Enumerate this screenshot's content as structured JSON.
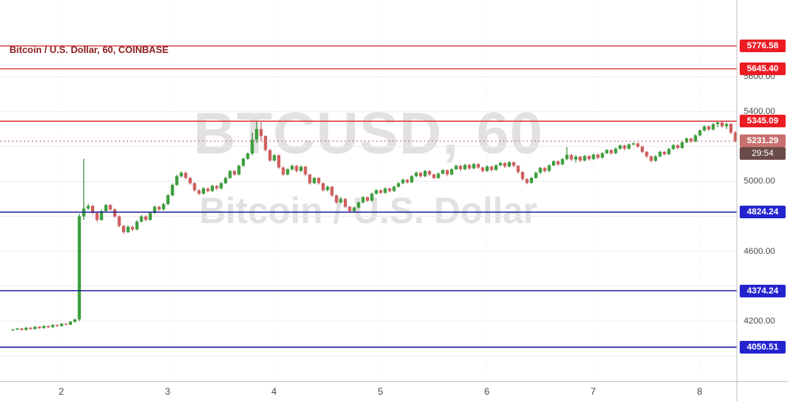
{
  "watermark": {
    "line1": "BTCUSD, 60",
    "line2": "Bitcoin / U.S. Dollar"
  },
  "colors": {
    "up": "#3c9e3c",
    "up_wick": "#1e7a1e",
    "down": "#cf5f5f",
    "down_wick": "#b54a4a",
    "resistance_line": "#d84040",
    "resistance_label_bg": "#ed1c24",
    "support_line": "#1a1a99",
    "support_label_bg": "#2424cf",
    "current_line": "#c87070",
    "current_label_bg": "#c87070",
    "countdown_bg": "#6b4a4a",
    "label_text": "#ffffff",
    "grid": "#ececec",
    "axis_text": "#4c4c4c",
    "legend_text": "#8b1a1a"
  },
  "chart_data": {
    "type": "candlestick",
    "title": "Bitcoin / U.S. Dollar, 60, COINBASE",
    "symbol": "BTCUSD",
    "interval": "60",
    "exchange": "COINBASE",
    "x_axis": {
      "labels": [
        "2",
        "3",
        "4",
        "5",
        "6",
        "7",
        "8"
      ],
      "start_day": 1.54,
      "candle_step_days": 0.0416667
    },
    "y_axis": {
      "visible_range": [
        3865,
        6040
      ],
      "grid_step": 200,
      "ticks": [
        {
          "price": 5600,
          "label": "5600.00"
        },
        {
          "price": 5400,
          "label": "5400.00"
        },
        {
          "price": 5000,
          "label": "5000.00"
        },
        {
          "price": 4600,
          "label": "4600.00"
        },
        {
          "price": 4200,
          "label": "4200.00"
        }
      ]
    },
    "levels": [
      {
        "price": 5776.58,
        "label": "5776.58",
        "kind": "resistance"
      },
      {
        "price": 5645.4,
        "label": "5645.40",
        "kind": "resistance"
      },
      {
        "price": 5345.09,
        "label": "5345.09",
        "kind": "resistance"
      },
      {
        "price": 4824.24,
        "label": "4824.24",
        "kind": "support"
      },
      {
        "price": 4374.24,
        "label": "4374.24",
        "kind": "support"
      },
      {
        "price": 4050.51,
        "label": "4050.51",
        "kind": "support"
      }
    ],
    "current_price": {
      "value": 5231.29,
      "label": "5231.29",
      "countdown": "29:54"
    },
    "candles": [
      [
        4148,
        4156,
        4144,
        4152
      ],
      [
        4152,
        4162,
        4148,
        4158
      ],
      [
        4158,
        4161,
        4145,
        4150
      ],
      [
        4150,
        4166,
        4147,
        4162
      ],
      [
        4162,
        4165,
        4150,
        4155
      ],
      [
        4155,
        4172,
        4152,
        4168
      ],
      [
        4168,
        4171,
        4156,
        4160
      ],
      [
        4160,
        4176,
        4157,
        4172
      ],
      [
        4172,
        4175,
        4160,
        4165
      ],
      [
        4165,
        4182,
        4162,
        4178
      ],
      [
        4178,
        4181,
        4166,
        4172
      ],
      [
        4172,
        4189,
        4169,
        4185
      ],
      [
        4185,
        4188,
        4175,
        4180
      ],
      [
        4180,
        4200,
        4177,
        4196
      ],
      [
        4196,
        4214,
        4192,
        4210
      ],
      [
        4210,
        4815,
        4200,
        4800
      ],
      [
        4800,
        5130,
        4780,
        4845
      ],
      [
        4845,
        4872,
        4838,
        4860
      ],
      [
        4860,
        4866,
        4812,
        4820
      ],
      [
        4820,
        4828,
        4770,
        4780
      ],
      [
        4780,
        4838,
        4775,
        4830
      ],
      [
        4830,
        4872,
        4825,
        4865
      ],
      [
        4865,
        4870,
        4832,
        4840
      ],
      [
        4840,
        4846,
        4792,
        4800
      ],
      [
        4800,
        4806,
        4738,
        4745
      ],
      [
        4745,
        4752,
        4700,
        4710
      ],
      [
        4710,
        4748,
        4705,
        4740
      ],
      [
        4740,
        4746,
        4716,
        4725
      ],
      [
        4725,
        4778,
        4720,
        4770
      ],
      [
        4770,
        4808,
        4765,
        4800
      ],
      [
        4800,
        4806,
        4772,
        4780
      ],
      [
        4780,
        4828,
        4776,
        4820
      ],
      [
        4820,
        4862,
        4815,
        4855
      ],
      [
        4855,
        4860,
        4832,
        4840
      ],
      [
        4840,
        4878,
        4835,
        4870
      ],
      [
        4870,
        4928,
        4865,
        4920
      ],
      [
        4920,
        4988,
        4915,
        4980
      ],
      [
        4980,
        5038,
        4975,
        5030
      ],
      [
        5030,
        5058,
        5022,
        5050
      ],
      [
        5050,
        5055,
        5012,
        5020
      ],
      [
        5020,
        5026,
        4982,
        4990
      ],
      [
        4990,
        4996,
        4942,
        4950
      ],
      [
        4950,
        4955,
        4922,
        4930
      ],
      [
        4930,
        4968,
        4925,
        4960
      ],
      [
        4960,
        4964,
        4938,
        4945
      ],
      [
        4945,
        4982,
        4940,
        4975
      ],
      [
        4975,
        4980,
        4952,
        4960
      ],
      [
        4960,
        4996,
        4955,
        4990
      ],
      [
        4990,
        5028,
        4985,
        5020
      ],
      [
        5020,
        5066,
        5015,
        5060
      ],
      [
        5060,
        5064,
        5032,
        5040
      ],
      [
        5040,
        5096,
        5035,
        5090
      ],
      [
        5090,
        5136,
        5085,
        5130
      ],
      [
        5130,
        5166,
        5125,
        5160
      ],
      [
        5160,
        5280,
        5150,
        5240
      ],
      [
        5240,
        5345,
        5220,
        5300
      ],
      [
        5300,
        5340,
        5230,
        5260
      ],
      [
        5260,
        5265,
        5172,
        5180
      ],
      [
        5180,
        5186,
        5112,
        5120
      ],
      [
        5120,
        5156,
        5115,
        5150
      ],
      [
        5150,
        5154,
        5072,
        5080
      ],
      [
        5080,
        5086,
        5032,
        5040
      ],
      [
        5040,
        5076,
        5035,
        5070
      ],
      [
        5070,
        5096,
        5062,
        5090
      ],
      [
        5090,
        5094,
        5052,
        5060
      ],
      [
        5060,
        5090,
        5055,
        5085
      ],
      [
        5085,
        5088,
        5032,
        5040
      ],
      [
        5040,
        5044,
        4982,
        4990
      ],
      [
        4990,
        5026,
        4985,
        5020
      ],
      [
        5020,
        5024,
        4982,
        4990
      ],
      [
        4990,
        4994,
        4942,
        4950
      ],
      [
        4950,
        4976,
        4945,
        4970
      ],
      [
        4970,
        4974,
        4912,
        4920
      ],
      [
        4920,
        4926,
        4872,
        4880
      ],
      [
        4880,
        4906,
        4874,
        4900
      ],
      [
        4900,
        4904,
        4848,
        4855
      ],
      [
        4855,
        4860,
        4820,
        4830
      ],
      [
        4830,
        4856,
        4823,
        4850
      ],
      [
        4850,
        4884,
        4845,
        4880
      ],
      [
        4880,
        4916,
        4875,
        4910
      ],
      [
        4910,
        4914,
        4882,
        4890
      ],
      [
        4890,
        4936,
        4885,
        4930
      ],
      [
        4930,
        4956,
        4925,
        4950
      ],
      [
        4950,
        4954,
        4928,
        4935
      ],
      [
        4935,
        4966,
        4930,
        4960
      ],
      [
        4960,
        4964,
        4938,
        4945
      ],
      [
        4945,
        4976,
        4940,
        4970
      ],
      [
        4970,
        4996,
        4965,
        4990
      ],
      [
        4990,
        5016,
        4985,
        5010
      ],
      [
        5010,
        5014,
        4988,
        4995
      ],
      [
        4995,
        5036,
        4990,
        5030
      ],
      [
        5030,
        5056,
        5025,
        5050
      ],
      [
        5050,
        5054,
        5022,
        5030
      ],
      [
        5030,
        5066,
        5025,
        5060
      ],
      [
        5060,
        5064,
        5032,
        5040
      ],
      [
        5040,
        5044,
        5012,
        5020
      ],
      [
        5020,
        5051,
        5015,
        5045
      ],
      [
        5045,
        5071,
        5040,
        5065
      ],
      [
        5065,
        5069,
        5032,
        5040
      ],
      [
        5040,
        5076,
        5035,
        5070
      ],
      [
        5070,
        5096,
        5065,
        5090
      ],
      [
        5090,
        5094,
        5062,
        5070
      ],
      [
        5070,
        5101,
        5065,
        5095
      ],
      [
        5095,
        5099,
        5067,
        5075
      ],
      [
        5075,
        5106,
        5070,
        5100
      ],
      [
        5100,
        5104,
        5072,
        5080
      ],
      [
        5080,
        5084,
        5052,
        5060
      ],
      [
        5060,
        5092,
        5055,
        5086
      ],
      [
        5086,
        5090,
        5058,
        5066
      ],
      [
        5066,
        5098,
        5061,
        5092
      ],
      [
        5092,
        5112,
        5087,
        5106
      ],
      [
        5106,
        5110,
        5078,
        5086
      ],
      [
        5086,
        5116,
        5081,
        5110
      ],
      [
        5110,
        5114,
        5082,
        5090
      ],
      [
        5090,
        5094,
        5046,
        5054
      ],
      [
        5054,
        5058,
        5006,
        5014
      ],
      [
        5014,
        5018,
        4984,
        4992
      ],
      [
        4992,
        5026,
        4987,
        5020
      ],
      [
        5020,
        5056,
        5015,
        5050
      ],
      [
        5050,
        5084,
        5045,
        5078
      ],
      [
        5078,
        5082,
        5052,
        5060
      ],
      [
        5060,
        5098,
        5055,
        5092
      ],
      [
        5092,
        5122,
        5087,
        5116
      ],
      [
        5116,
        5120,
        5090,
        5098
      ],
      [
        5098,
        5134,
        5093,
        5128
      ],
      [
        5128,
        5196,
        5122,
        5152
      ],
      [
        5152,
        5156,
        5118,
        5126
      ],
      [
        5126,
        5150,
        5108,
        5142
      ],
      [
        5142,
        5146,
        5112,
        5120
      ],
      [
        5120,
        5152,
        5115,
        5146
      ],
      [
        5146,
        5150,
        5120,
        5128
      ],
      [
        5128,
        5160,
        5123,
        5154
      ],
      [
        5154,
        5158,
        5128,
        5136
      ],
      [
        5136,
        5168,
        5131,
        5162
      ],
      [
        5162,
        5186,
        5157,
        5180
      ],
      [
        5180,
        5184,
        5154,
        5162
      ],
      [
        5162,
        5194,
        5157,
        5188
      ],
      [
        5188,
        5212,
        5183,
        5206
      ],
      [
        5206,
        5210,
        5180,
        5188
      ],
      [
        5188,
        5218,
        5183,
        5212
      ],
      [
        5212,
        5224,
        5207,
        5218
      ],
      [
        5218,
        5222,
        5192,
        5200
      ],
      [
        5200,
        5204,
        5162,
        5170
      ],
      [
        5170,
        5174,
        5136,
        5144
      ],
      [
        5144,
        5148,
        5110,
        5118
      ],
      [
        5118,
        5150,
        5113,
        5144
      ],
      [
        5144,
        5176,
        5139,
        5170
      ],
      [
        5170,
        5174,
        5148,
        5156
      ],
      [
        5156,
        5192,
        5151,
        5186
      ],
      [
        5186,
        5214,
        5181,
        5208
      ],
      [
        5208,
        5212,
        5184,
        5192
      ],
      [
        5192,
        5230,
        5187,
        5224
      ],
      [
        5224,
        5252,
        5219,
        5246
      ],
      [
        5246,
        5250,
        5222,
        5230
      ],
      [
        5230,
        5270,
        5225,
        5264
      ],
      [
        5264,
        5298,
        5259,
        5292
      ],
      [
        5292,
        5322,
        5287,
        5316
      ],
      [
        5316,
        5320,
        5290,
        5298
      ],
      [
        5298,
        5334,
        5293,
        5328
      ],
      [
        5328,
        5345,
        5310,
        5338
      ],
      [
        5338,
        5342,
        5308,
        5316
      ],
      [
        5316,
        5336,
        5300,
        5330
      ],
      [
        5330,
        5334,
        5272,
        5280
      ],
      [
        5280,
        5288,
        5224,
        5231
      ]
    ]
  }
}
